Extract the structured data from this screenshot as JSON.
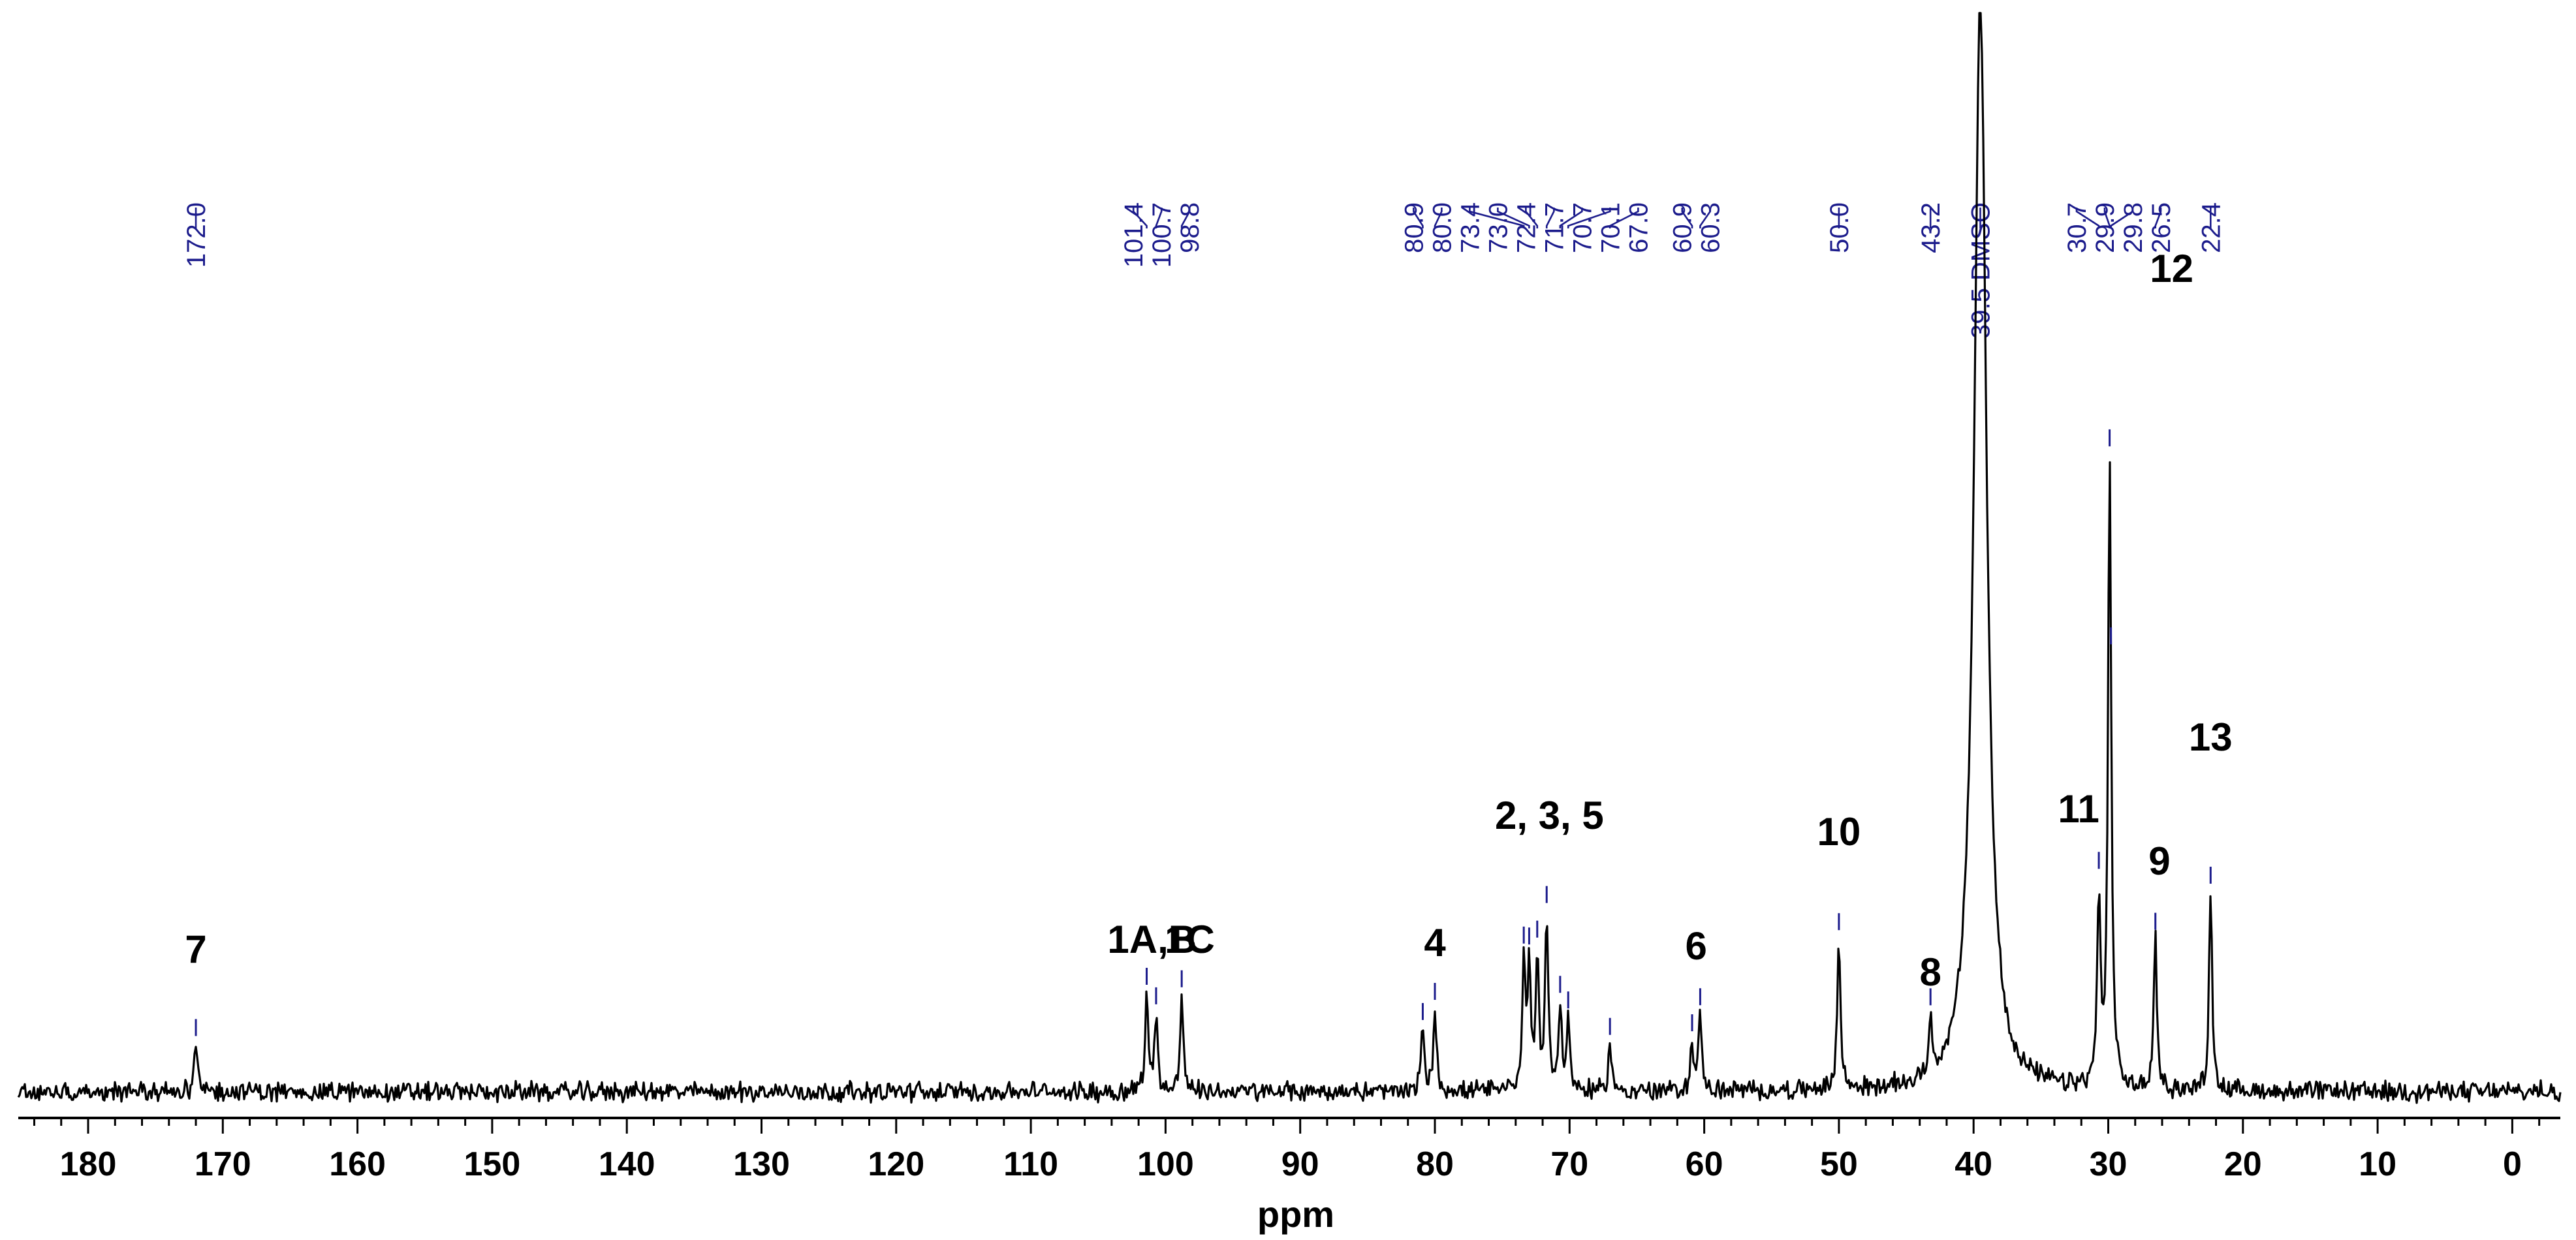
{
  "chart_data": {
    "type": "line",
    "title": "",
    "xlabel": "ppm",
    "ylabel": "",
    "xlim": [
      185,
      -2
    ],
    "x_reversed": true,
    "ticks": [
      "180",
      "170",
      "160",
      "150",
      "140",
      "130",
      "120",
      "110",
      "100",
      "90",
      "80",
      "70",
      "60",
      "50",
      "40",
      "30",
      "20",
      "10",
      "0"
    ],
    "grid": false,
    "legend": "none",
    "colors": {
      "spectrum": "#000000",
      "peak_labels": "#1c1c8c"
    },
    "peaks": [
      {
        "ppm": 172.0,
        "height": 0.07
      },
      {
        "ppm": 101.4,
        "height": 0.14
      },
      {
        "ppm": 100.7,
        "height": 0.11
      },
      {
        "ppm": 98.8,
        "height": 0.14
      },
      {
        "ppm": 80.9,
        "height": 0.09
      },
      {
        "ppm": 80.0,
        "height": 0.12
      },
      {
        "ppm": 73.4,
        "height": 0.18
      },
      {
        "ppm": 73.0,
        "height": 0.17
      },
      {
        "ppm": 72.4,
        "height": 0.19
      },
      {
        "ppm": 71.7,
        "height": 0.25
      },
      {
        "ppm": 70.7,
        "height": 0.12
      },
      {
        "ppm": 70.1,
        "height": 0.1
      },
      {
        "ppm": 67.0,
        "height": 0.07
      },
      {
        "ppm": 60.9,
        "height": 0.07
      },
      {
        "ppm": 60.3,
        "height": 0.11
      },
      {
        "ppm": 50.0,
        "height": 0.22
      },
      {
        "ppm": 43.2,
        "height": 0.08
      },
      {
        "ppm": 39.5,
        "height": 1.6
      },
      {
        "ppm": 30.7,
        "height": 0.28
      },
      {
        "ppm": 29.9,
        "height": 0.89
      },
      {
        "ppm": 29.8,
        "height": 0.04
      },
      {
        "ppm": 26.5,
        "height": 0.22
      },
      {
        "ppm": 22.4,
        "height": 0.29
      }
    ],
    "shift_labels": [
      "172.0",
      "101.4",
      "100.7",
      "98.8",
      "80.9",
      "80.0",
      "73.4",
      "73.0",
      "72.4",
      "71.7",
      "70.7",
      "70.1",
      "67.0",
      "60.9",
      "60.3",
      "50.0",
      "43.2",
      "39.5 DMSO",
      "30.7",
      "29.9",
      "29.8",
      "26.5",
      "22.4"
    ],
    "assignments": [
      {
        "text": "7",
        "ppm": 172.0
      },
      {
        "text": "1A,B",
        "ppm": 101.0
      },
      {
        "text": "1C",
        "ppm": 98.2
      },
      {
        "text": "4",
        "ppm": 80.0
      },
      {
        "text": "2, 3, 5",
        "ppm": 71.5
      },
      {
        "text": "6",
        "ppm": 60.6
      },
      {
        "text": "10",
        "ppm": 50.0
      },
      {
        "text": "8",
        "ppm": 43.2
      },
      {
        "text": "11",
        "ppm": 32.2
      },
      {
        "text": "12",
        "ppm": 28.2
      },
      {
        "text": "9",
        "ppm": 26.2
      },
      {
        "text": "13",
        "ppm": 22.4
      }
    ]
  }
}
